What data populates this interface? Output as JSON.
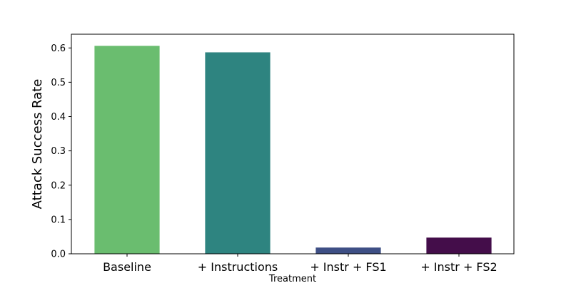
{
  "chart_data": {
    "type": "bar",
    "categories": [
      "Baseline",
      "+ Instructions",
      "+ Instr + FS1",
      "+ Instr + FS2"
    ],
    "values": [
      0.607,
      0.588,
      0.019,
      0.048
    ],
    "colors": [
      "#6abd6f",
      "#2e8480",
      "#3e4f85",
      "#440d4a"
    ],
    "title": "",
    "xlabel": "Treatment",
    "ylabel": "Attack Success Rate",
    "ylim": [
      0,
      0.64
    ],
    "yticks": [
      0.0,
      0.1,
      0.2,
      0.3,
      0.4,
      0.5,
      0.6
    ],
    "ytick_labels": [
      "0.0",
      "0.1",
      "0.2",
      "0.3",
      "0.4",
      "0.5",
      "0.6"
    ],
    "grid": false,
    "legend": "none"
  }
}
